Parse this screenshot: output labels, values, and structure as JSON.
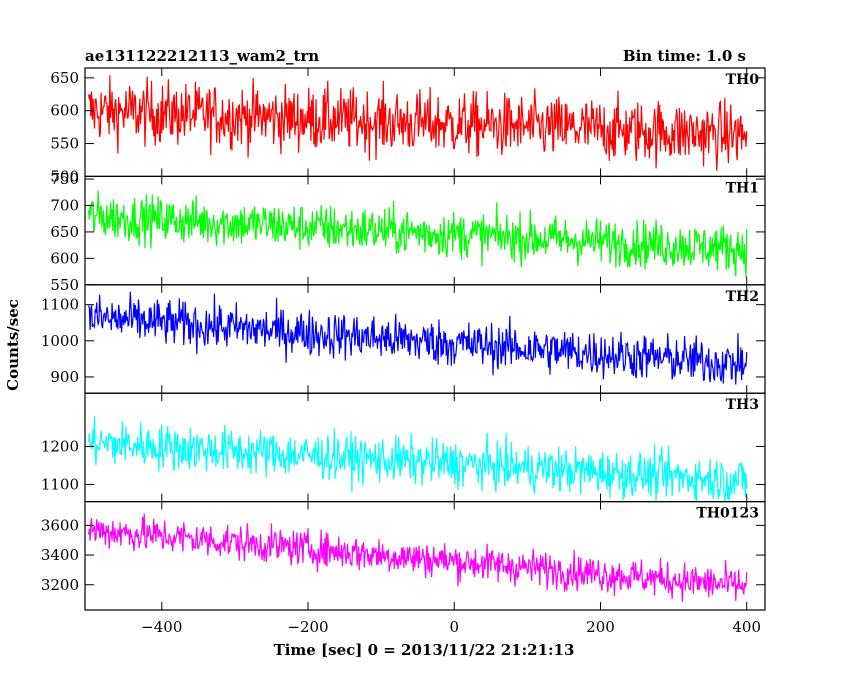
{
  "chart_data": {
    "type": "line",
    "title_left": "ae131122212113_wam2_trn",
    "title_right": "Bin time: 1.0 s",
    "xlabel": "Time [sec] 0 = 2013/11/22 21:21:13",
    "ylabel": "Counts/sec",
    "xlim": [
      -505,
      425
    ],
    "x_ticks": [
      -400,
      -200,
      0,
      200,
      400
    ],
    "x_range": [
      -500,
      400
    ],
    "grid": false,
    "series": [
      {
        "name": "TH0",
        "color": "#ff0000",
        "ylim": [
          500,
          665
        ],
        "y_ticks": [
          500,
          550,
          600,
          650
        ],
        "trend": [
          {
            "x": -500,
            "y": 600
          },
          {
            "x": 400,
            "y": 563
          }
        ],
        "noise": 24
      },
      {
        "name": "TH1",
        "color": "#00ff00",
        "ylim": [
          550,
          755
        ],
        "y_ticks": [
          550,
          600,
          650,
          700,
          750
        ],
        "trend": [
          {
            "x": -500,
            "y": 680
          },
          {
            "x": 400,
            "y": 618
          }
        ],
        "noise": 22
      },
      {
        "name": "TH2",
        "color": "#0000ff",
        "ylim": [
          855,
          1155
        ],
        "y_ticks": [
          900,
          1000,
          1100
        ],
        "trend": [
          {
            "x": -500,
            "y": 1065
          },
          {
            "x": 400,
            "y": 935
          }
        ],
        "noise": 32
      },
      {
        "name": "TH3",
        "color": "#00ffff",
        "ylim": [
          1055,
          1340
        ],
        "y_ticks": [
          1100,
          1200
        ],
        "trend": [
          {
            "x": -500,
            "y": 1210
          },
          {
            "x": 400,
            "y": 1110
          }
        ],
        "noise": 30
      },
      {
        "name": "TH0123",
        "color": "#ff00ff",
        "ylim": [
          3030,
          3760
        ],
        "y_ticks": [
          3200,
          3400,
          3600
        ],
        "trend": [
          {
            "x": -500,
            "y": 3570
          },
          {
            "x": 400,
            "y": 3190
          }
        ],
        "noise": 60
      }
    ]
  }
}
